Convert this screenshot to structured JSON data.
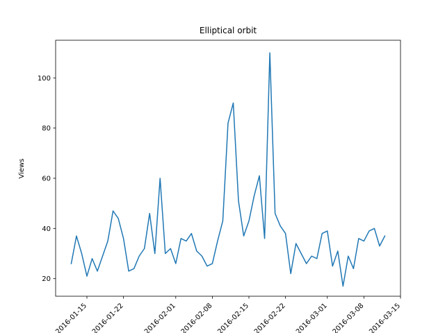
{
  "chart_data": {
    "type": "line",
    "title": "Elliptical orbit",
    "xlabel": "",
    "ylabel": "Views",
    "grid": false,
    "legend": "none",
    "color": "#1f77b4",
    "start_date": "2016-01-12",
    "x_tick_labels": [
      "2016-01-15",
      "2016-01-22",
      "2016-02-01",
      "2016-02-08",
      "2016-02-15",
      "2016-02-22",
      "2016-03-01",
      "2016-03-08",
      "2016-03-15"
    ],
    "y_ticks": [
      20,
      40,
      60,
      80,
      100
    ],
    "ylim": [
      13,
      115
    ],
    "series": [
      {
        "values": [
          26,
          37,
          30,
          21,
          28,
          23,
          29,
          35,
          47,
          44,
          36,
          23,
          24,
          29,
          32,
          46,
          30,
          60,
          30,
          32,
          26,
          36,
          35,
          38,
          31,
          29,
          25,
          26,
          35,
          43,
          82,
          90,
          51,
          37,
          43,
          53,
          61,
          36,
          110,
          46,
          41,
          38,
          22,
          34,
          30,
          26,
          29,
          28,
          38,
          39,
          25,
          31,
          17,
          29,
          24,
          36,
          35,
          39,
          40,
          33,
          37
        ]
      }
    ]
  }
}
